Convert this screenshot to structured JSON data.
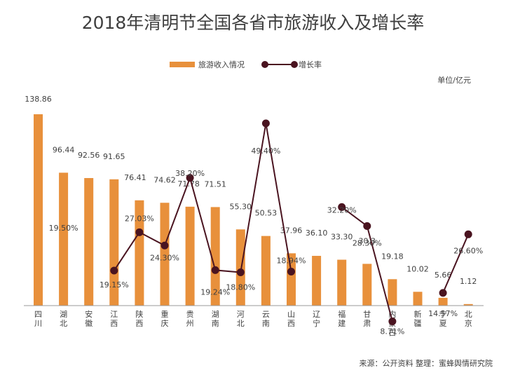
{
  "chart_data": {
    "type": "bar",
    "title": "2018年清明节全国各省市旅游收入及增长率",
    "unit": "单位/亿元",
    "source": "来源：公开资料  整理：蜜蜂舆情研究院",
    "legend": [
      {
        "name": "旅游收入情况",
        "kind": "bar",
        "color": "#E8903B"
      },
      {
        "name": "增长率",
        "kind": "line",
        "color": "#5A1E2A"
      }
    ],
    "categories": [
      "四川",
      "湖北",
      "安徽",
      "江西",
      "陕西",
      "重庆",
      "贵州",
      "湖南",
      "河北",
      "云南",
      "山西",
      "辽宁",
      "福建",
      "甘肃",
      "内蒙古",
      "新疆",
      "宁夏",
      "北京"
    ],
    "series": [
      {
        "name": "旅游收入情况",
        "type": "bar",
        "values": [
          138.86,
          96.44,
          92.56,
          91.65,
          76.41,
          74.62,
          71.78,
          71.51,
          55.3,
          50.53,
          37.96,
          36.1,
          33.3,
          30.3,
          19.18,
          10.02,
          5.66,
          1.12
        ],
        "labels": [
          "138.86",
          "96.44",
          "92.56",
          "91.65",
          "76.41",
          "74.62",
          "71.78",
          "71.51",
          "55.30",
          "50.53",
          "37.96",
          "36.10",
          "33.30",
          "30.3",
          "19.18",
          "10.02",
          "5.66",
          "1.12"
        ]
      },
      {
        "name": "增长率",
        "type": "line",
        "values": [
          null,
          19.5,
          null,
          19.15,
          27.03,
          24.3,
          38.2,
          19.24,
          18.8,
          49.4,
          18.94,
          null,
          32.2,
          28.3,
          8.71,
          null,
          14.57,
          26.6
        ],
        "labels": [
          null,
          "19.50%",
          null,
          "19.15%",
          "27.03%",
          "24.30%",
          "38.20%",
          "19.24%",
          "18.80%",
          "49.40%",
          "18.94%",
          null,
          "32.20%",
          "28.30%",
          "8.71%",
          null,
          "14.57%",
          "26.60%"
        ],
        "segments": [
          [
            3,
            10
          ],
          [
            12,
            14
          ],
          [
            16,
            17
          ]
        ]
      }
    ],
    "bar_axis": {
      "min": 0,
      "max": 140
    },
    "rate_axis": {
      "min": 0,
      "max": 55
    },
    "grid": false,
    "legend_position": "top-center",
    "colors": {
      "bar": "#E8903B",
      "line": "#4A1420",
      "marker": "#4A1420",
      "axis": "#9a9a9a"
    }
  }
}
